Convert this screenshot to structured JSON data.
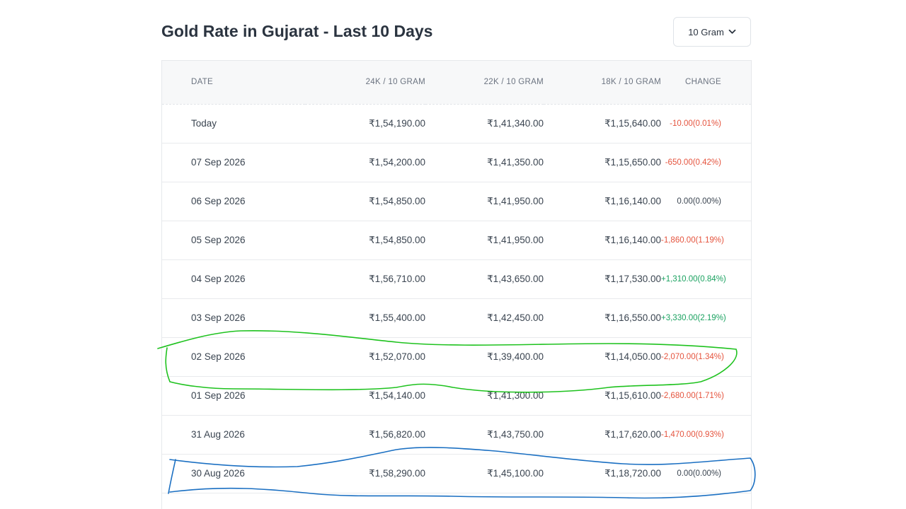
{
  "header": {
    "title": "Gold Rate in Gujarat - Last 10 Days",
    "unit_select": {
      "value": "10 Gram",
      "icon": "chevron-down-icon"
    }
  },
  "table": {
    "columns": {
      "date": "DATE",
      "k24": "24K / 10 GRAM",
      "k22": "22K / 10 GRAM",
      "k18": "18K / 10 GRAM",
      "change": "CHANGE"
    },
    "rows": [
      {
        "date": "Today",
        "k24": "₹1,54,190.00",
        "k22": "₹1,41,340.00",
        "k18": "₹1,15,640.00",
        "change": "-10.00(0.01%)",
        "trend": "down"
      },
      {
        "date": "07 Sep 2026",
        "k24": "₹1,54,200.00",
        "k22": "₹1,41,350.00",
        "k18": "₹1,15,650.00",
        "change": "-650.00(0.42%)",
        "trend": "down"
      },
      {
        "date": "06 Sep 2026",
        "k24": "₹1,54,850.00",
        "k22": "₹1,41,950.00",
        "k18": "₹1,16,140.00",
        "change": "0.00(0.00%)",
        "trend": "flat"
      },
      {
        "date": "05 Sep 2026",
        "k24": "₹1,54,850.00",
        "k22": "₹1,41,950.00",
        "k18": "₹1,16,140.00",
        "change": "-1,860.00(1.19%)",
        "trend": "down"
      },
      {
        "date": "04 Sep 2026",
        "k24": "₹1,56,710.00",
        "k22": "₹1,43,650.00",
        "k18": "₹1,17,530.00",
        "change": "+1,310.00(0.84%)",
        "trend": "up"
      },
      {
        "date": "03 Sep 2026",
        "k24": "₹1,55,400.00",
        "k22": "₹1,42,450.00",
        "k18": "₹1,16,550.00",
        "change": "+3,330.00(2.19%)",
        "trend": "up"
      },
      {
        "date": "02 Sep 2026",
        "k24": "₹1,52,070.00",
        "k22": "₹1,39,400.00",
        "k18": "₹1,14,050.00",
        "change": "-2,070.00(1.34%)",
        "trend": "down"
      },
      {
        "date": "01 Sep 2026",
        "k24": "₹1,54,140.00",
        "k22": "₹1,41,300.00",
        "k18": "₹1,15,610.00",
        "change": "-2,680.00(1.71%)",
        "trend": "down"
      },
      {
        "date": "31 Aug 2026",
        "k24": "₹1,56,820.00",
        "k22": "₹1,43,750.00",
        "k18": "₹1,17,620.00",
        "change": "-1,470.00(0.93%)",
        "trend": "down"
      },
      {
        "date": "30 Aug 2026",
        "k24": "₹1,58,290.00",
        "k22": "₹1,45,100.00",
        "k18": "₹1,18,720.00",
        "change": "0.00(0.00%)",
        "trend": "flat"
      }
    ]
  },
  "annotations": {
    "green_outline": {
      "color": "#1ec21e",
      "row": "02 Sep 2026"
    },
    "blue_outline": {
      "color": "#1a6fc2",
      "row": "30 Aug 2026"
    }
  },
  "colors": {
    "down": "#e5533d",
    "up": "#1aa260",
    "header_bg": "#f7f8f9"
  }
}
